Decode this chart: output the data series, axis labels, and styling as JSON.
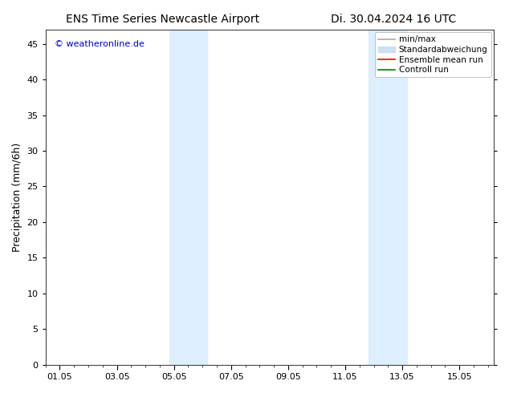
{
  "title_left": "ENS Time Series Newcastle Airport",
  "title_right": "Di. 30.04.2024 16 UTC",
  "ylabel": "Precipitation (mm/6h)",
  "watermark": "© weatheronline.de",
  "watermark_color": "#0000cc",
  "background_color": "#ffffff",
  "plot_bg_color": "#ffffff",
  "shaded_bands": [
    {
      "x_start": 3.83,
      "x_end": 5.17,
      "color": "#ddeeff"
    },
    {
      "x_start": 10.83,
      "x_end": 12.17,
      "color": "#ddeeff"
    }
  ],
  "x_ticks_labels": [
    "01.05",
    "03.05",
    "05.05",
    "07.05",
    "09.05",
    "11.05",
    "13.05",
    "15.05"
  ],
  "x_ticks_values": [
    0,
    2,
    4,
    6,
    8,
    10,
    12,
    14
  ],
  "xlim": [
    -0.5,
    15.2
  ],
  "ylim": [
    0,
    47
  ],
  "yticks": [
    0,
    5,
    10,
    15,
    20,
    25,
    30,
    35,
    40,
    45
  ],
  "legend_entries": [
    {
      "label": "min/max",
      "color": "#aaaaaa",
      "linewidth": 1.2,
      "linestyle": "-",
      "type": "line"
    },
    {
      "label": "Standardabweichung",
      "color": "#cce0f0",
      "linewidth": 8,
      "linestyle": "-",
      "type": "patch"
    },
    {
      "label": "Ensemble mean run",
      "color": "#ff0000",
      "linewidth": 1.2,
      "linestyle": "-",
      "type": "line"
    },
    {
      "label": "Controll run",
      "color": "#008000",
      "linewidth": 1.2,
      "linestyle": "-",
      "type": "line"
    }
  ],
  "title_fontsize": 10,
  "axis_fontsize": 9,
  "tick_fontsize": 8,
  "legend_fontsize": 7.5
}
